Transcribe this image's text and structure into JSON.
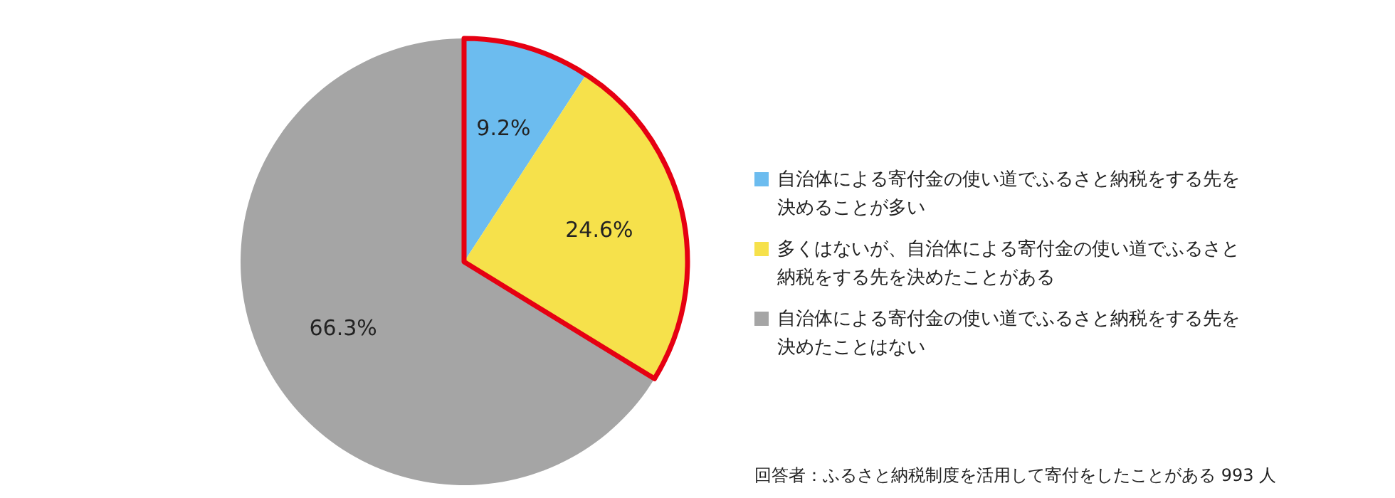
{
  "chart_data": {
    "type": "pie",
    "categories": [
      "自治体による寄付金の使い道でふるさと納税をする先を決めることが多い",
      "多くはないが、自治体による寄付金の使い道でふるさと納税をする先を決めたことがある",
      "自治体による寄付金の使い道でふるさと納税をする先を決めたことはない"
    ],
    "values": [
      9.2,
      24.6,
      66.3
    ],
    "value_labels": [
      "9.2%",
      "24.6%",
      "66.3%"
    ],
    "colors": [
      "#6cbcef",
      "#f6e14b",
      "#a5a5a5"
    ],
    "legend": "right",
    "annotations": [
      "回答者：ふるさと納税制度を活用して寄付をしたことがある 993 人"
    ]
  }
}
